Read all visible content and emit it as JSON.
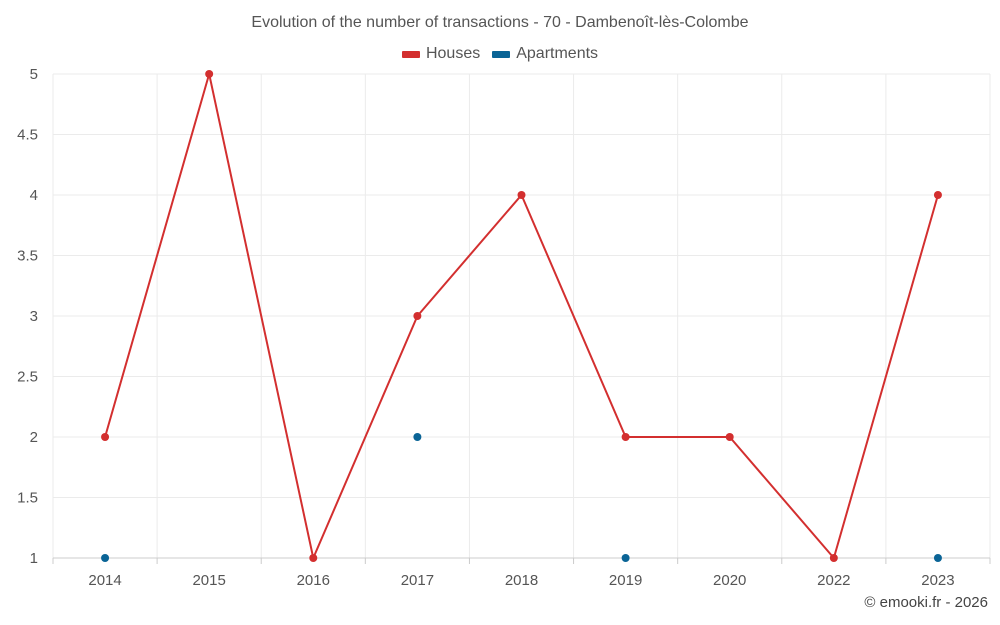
{
  "chart_data": {
    "type": "line",
    "title": "Evolution of the number of transactions - 70 - Dambenoît-lès-Colombe",
    "categories": [
      "2014",
      "2015",
      "2016",
      "2017",
      "2018",
      "2019",
      "2020",
      "2022",
      "2023"
    ],
    "series": [
      {
        "name": "Houses",
        "color": "#d32f2f",
        "style": "line-with-markers",
        "values": [
          2,
          5,
          1,
          3,
          4,
          2,
          2,
          1,
          4
        ]
      },
      {
        "name": "Apartments",
        "color": "#0a6496",
        "style": "markers-only",
        "values": [
          1,
          null,
          null,
          2,
          null,
          1,
          null,
          null,
          1
        ]
      }
    ],
    "ylim": [
      1,
      5
    ],
    "yticks": [
      "1",
      "1.5",
      "2",
      "2.5",
      "3",
      "3.5",
      "4",
      "4.5",
      "5"
    ],
    "xlabel": "",
    "ylabel": "",
    "grid": true,
    "legend_position": "top-center"
  },
  "credit": "© emooki.fr - 2026"
}
